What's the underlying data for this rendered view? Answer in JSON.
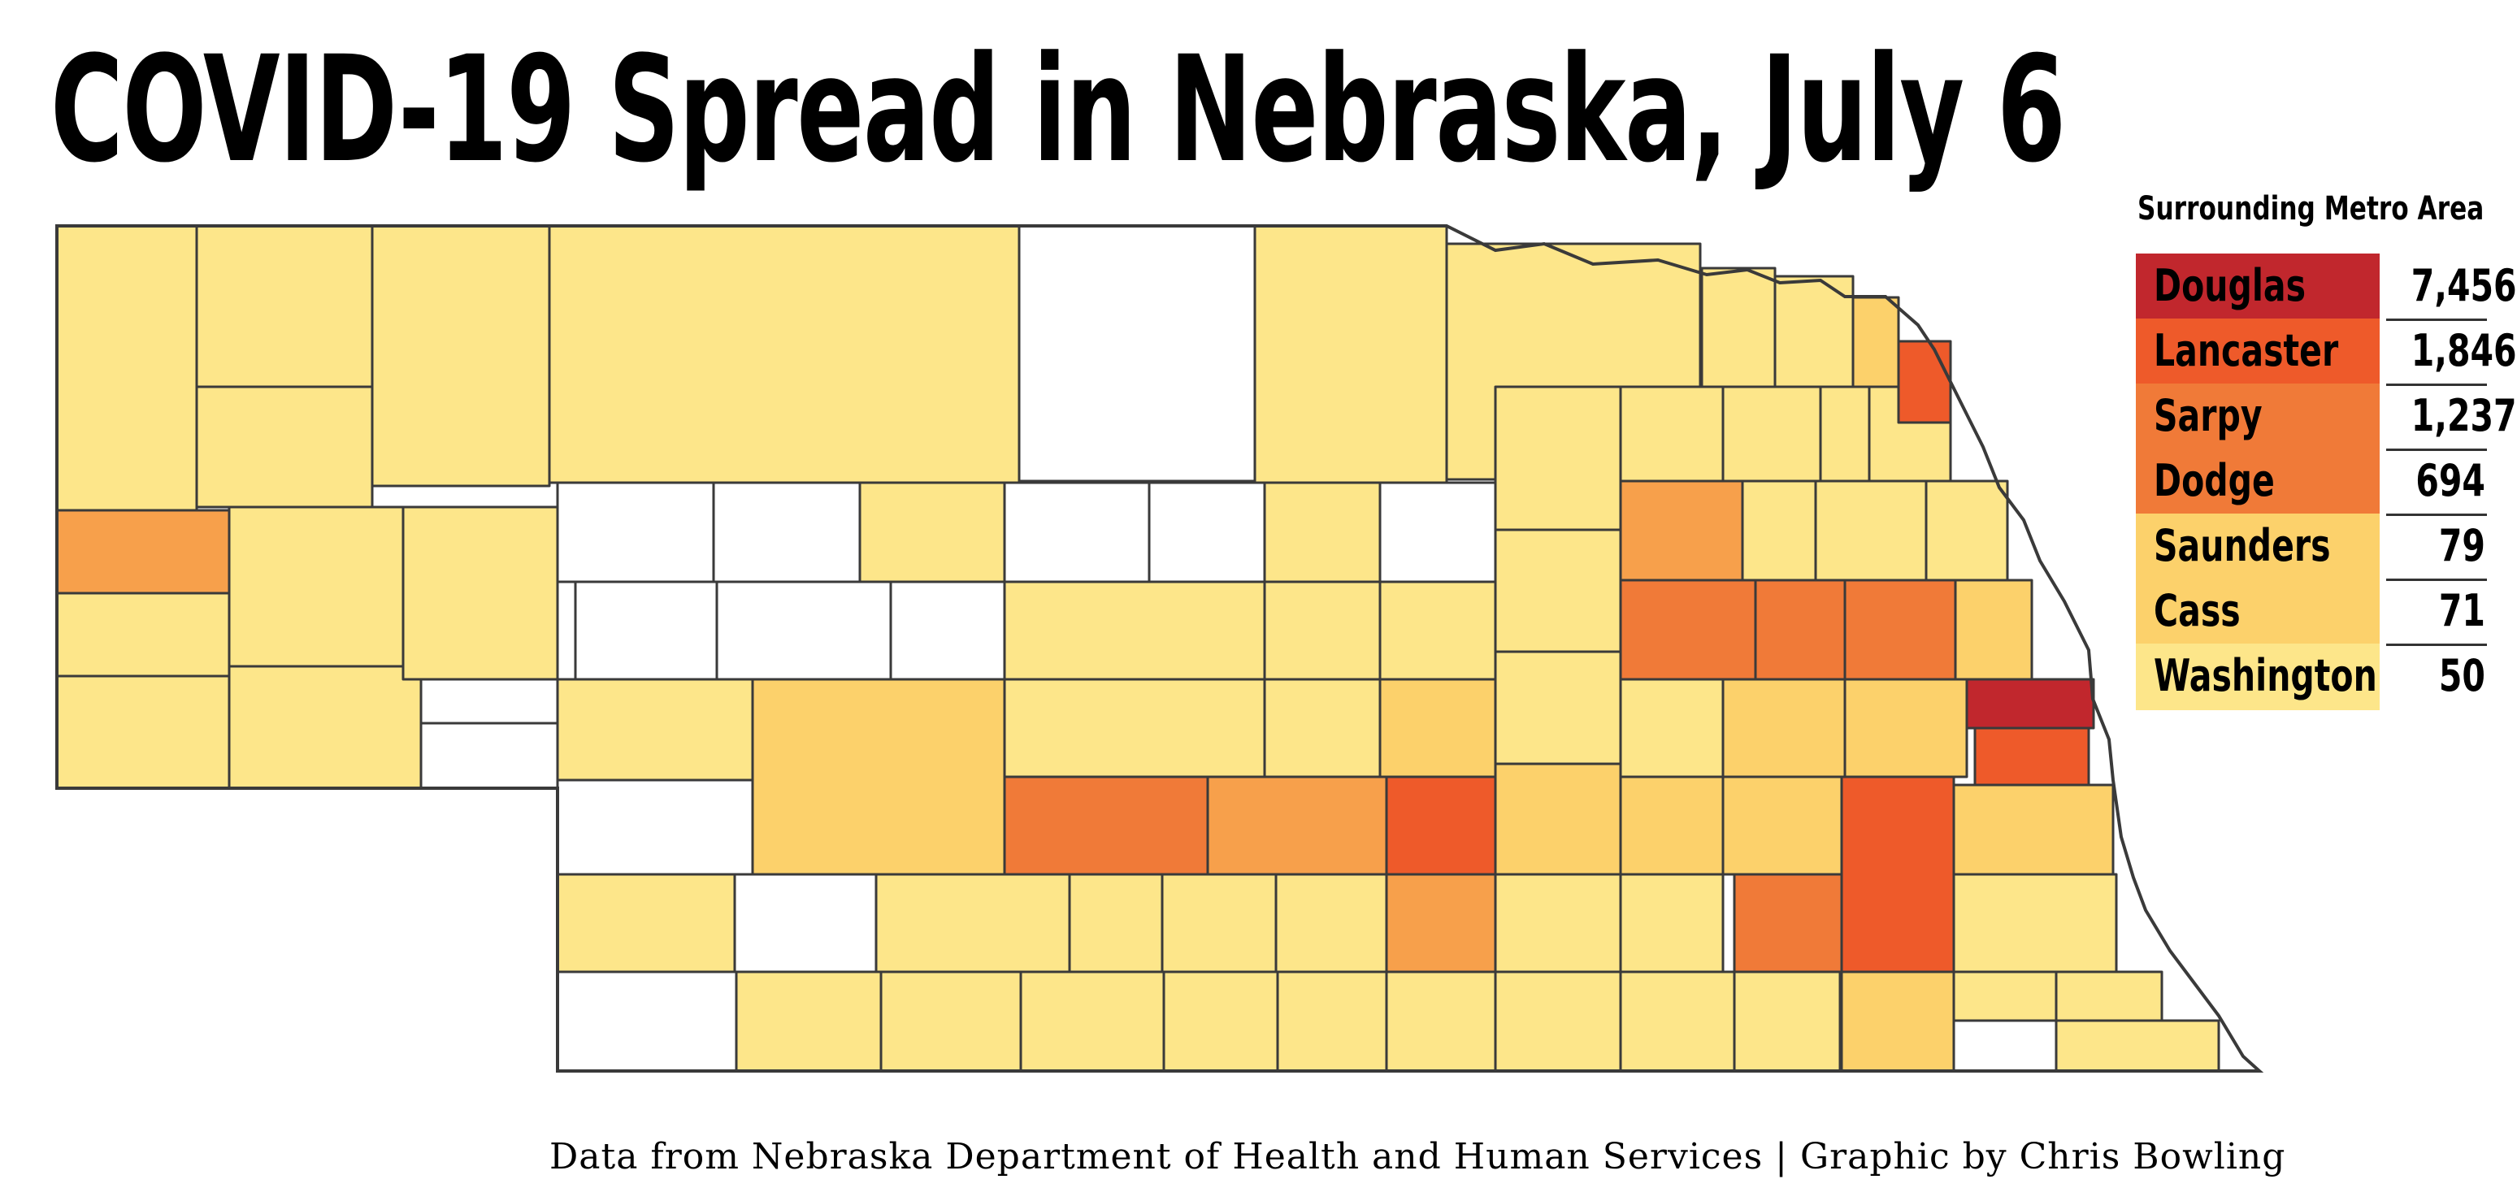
{
  "title": "COVID-19 Spread in Nebraska, July 6",
  "credit": "Data from Nebraska Department of Health and Human Services | Graphic by Chris Bowling",
  "colors": {
    "none": "#ffffff",
    "lowest": "#fde68a",
    "low": "#fcd16b",
    "mid": "#f7a04b",
    "high": "#f07a38",
    "higher": "#ee5a2a",
    "highest": "#c1272d",
    "border": "#3a3a3a"
  },
  "legend": {
    "heading": "Surrounding Metro Area",
    "items": [
      {
        "name": "Douglas",
        "value": "7,456",
        "level": "highest"
      },
      {
        "name": "Lancaster",
        "value": "1,846",
        "level": "higher"
      },
      {
        "name": "Sarpy",
        "value": "1,237",
        "level": "high"
      },
      {
        "name": "Dodge",
        "value": "694",
        "level": "high"
      },
      {
        "name": "Saunders",
        "value": "79",
        "level": "low"
      },
      {
        "name": "Cass",
        "value": "71",
        "level": "low"
      },
      {
        "name": "Washington",
        "value": "50",
        "level": "lowest"
      }
    ]
  }
}
